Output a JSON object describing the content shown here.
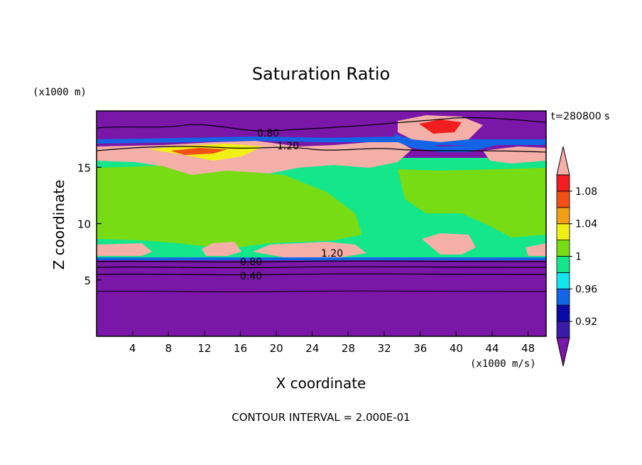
{
  "chart_data": {
    "type": "heatmap",
    "title": "Saturation Ratio",
    "xlabel": "X coordinate",
    "ylabel": "Z coordinate",
    "x_unit": "(x1000 m/s)",
    "y_unit": "(x1000 m)",
    "time_label": "t=280800 s",
    "footer": "CONTOUR INTERVAL = 2.000E-01",
    "xlim": [
      0,
      50
    ],
    "ylim": [
      0,
      20
    ],
    "x_ticks": [
      4,
      8,
      12,
      16,
      20,
      24,
      28,
      32,
      36,
      40,
      44,
      48
    ],
    "y_ticks": [
      5,
      10,
      15
    ],
    "colorbar": {
      "levels": [
        0.92,
        0.96,
        1.0,
        1.04,
        1.08
      ],
      "labels": [
        "0.92",
        "0.96",
        "1",
        "1.04",
        "1.08"
      ],
      "colors": [
        "#7a16a8",
        "#3a1aa8",
        "#0a0aa8",
        "#1464e6",
        "#14e6f0",
        "#14e68c",
        "#78dc14",
        "#f0f014",
        "#f0a014",
        "#f05014",
        "#f01e1e",
        "#f4b0a8"
      ]
    },
    "contour_labels": [
      {
        "text": "0.80",
        "x": 19.5,
        "z": 18.2
      },
      {
        "text": "1.20",
        "x": 21.5,
        "z": 17.0
      },
      {
        "text": "1.20",
        "x": 26.5,
        "z": 7.3
      },
      {
        "text": "0.80",
        "x": 17.5,
        "z": 6.6
      },
      {
        "text": "0.40",
        "x": 17.5,
        "z": 5.2
      }
    ]
  }
}
